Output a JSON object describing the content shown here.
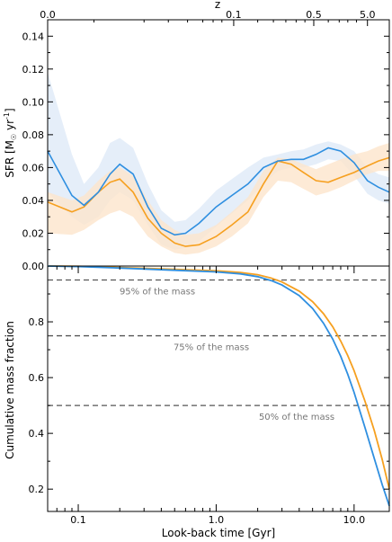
{
  "chart_data": [
    {
      "type": "line",
      "panel": "top",
      "top_axis_label": "z",
      "top_axis_ticks": [
        {
          "label": "0.0",
          "t": 0.06
        },
        {
          "label": "0.1",
          "t": 1.34
        },
        {
          "label": "0.5",
          "t": 5.1
        },
        {
          "label": "5.0",
          "t": 12.5
        }
      ],
      "ylabel_main": "SFR [M",
      "ylabel_sub": "☉",
      "ylabel_mid": " yr",
      "ylabel_sup": "-1",
      "ylabel_end": "]",
      "ylim": [
        0.0,
        0.15
      ],
      "yticks": [
        "0.00",
        "0.02",
        "0.04",
        "0.06",
        "0.08",
        "0.10",
        "0.12",
        "0.14"
      ],
      "xlim": [
        0.06,
        18.0
      ],
      "xscale": "log",
      "colors": {
        "blue": "#2f8fe0",
        "orange": "#f6a020",
        "blue_band": "#dfeaf7",
        "orange_band": "#fde5cc"
      },
      "series": [
        {
          "color_key": "blue",
          "x": [
            0.06,
            0.09,
            0.11,
            0.14,
            0.17,
            0.2,
            0.25,
            0.32,
            0.4,
            0.5,
            0.6,
            0.75,
            1.0,
            1.3,
            1.7,
            2.2,
            2.8,
            3.5,
            4.3,
            5.3,
            6.5,
            8.0,
            10.0,
            12.5,
            15.0,
            18.0
          ],
          "y": [
            0.07,
            0.043,
            0.037,
            0.045,
            0.056,
            0.062,
            0.056,
            0.036,
            0.023,
            0.019,
            0.02,
            0.026,
            0.036,
            0.043,
            0.05,
            0.06,
            0.064,
            0.065,
            0.065,
            0.068,
            0.072,
            0.07,
            0.063,
            0.052,
            0.048,
            0.045
          ],
          "lower": [
            0.045,
            0.03,
            0.025,
            0.03,
            0.04,
            0.045,
            0.04,
            0.025,
            0.013,
            0.01,
            0.011,
            0.015,
            0.024,
            0.032,
            0.04,
            0.05,
            0.058,
            0.06,
            0.06,
            0.062,
            0.065,
            0.064,
            0.055,
            0.044,
            0.04,
            0.038
          ],
          "upper": [
            0.118,
            0.068,
            0.05,
            0.06,
            0.075,
            0.078,
            0.072,
            0.05,
            0.034,
            0.027,
            0.028,
            0.035,
            0.046,
            0.053,
            0.06,
            0.066,
            0.068,
            0.07,
            0.071,
            0.074,
            0.076,
            0.074,
            0.07,
            0.06,
            0.056,
            0.054
          ]
        },
        {
          "color_key": "orange",
          "x": [
            0.06,
            0.09,
            0.11,
            0.14,
            0.17,
            0.2,
            0.25,
            0.32,
            0.4,
            0.5,
            0.6,
            0.75,
            1.0,
            1.3,
            1.7,
            2.2,
            2.8,
            3.5,
            4.3,
            5.3,
            6.5,
            8.0,
            10.0,
            12.5,
            15.0,
            18.0
          ],
          "y": [
            0.039,
            0.033,
            0.036,
            0.045,
            0.051,
            0.053,
            0.045,
            0.029,
            0.02,
            0.014,
            0.012,
            0.013,
            0.018,
            0.025,
            0.033,
            0.05,
            0.064,
            0.062,
            0.057,
            0.052,
            0.051,
            0.054,
            0.057,
            0.061,
            0.064,
            0.066
          ],
          "lower": [
            0.02,
            0.019,
            0.022,
            0.028,
            0.032,
            0.034,
            0.03,
            0.018,
            0.012,
            0.008,
            0.007,
            0.008,
            0.012,
            0.018,
            0.026,
            0.042,
            0.052,
            0.051,
            0.047,
            0.043,
            0.045,
            0.048,
            0.052,
            0.056,
            0.058,
            0.058
          ],
          "upper": [
            0.045,
            0.04,
            0.043,
            0.052,
            0.058,
            0.06,
            0.055,
            0.04,
            0.028,
            0.022,
            0.019,
            0.02,
            0.025,
            0.033,
            0.042,
            0.058,
            0.066,
            0.065,
            0.062,
            0.059,
            0.062,
            0.065,
            0.068,
            0.07,
            0.073,
            0.075
          ]
        }
      ]
    },
    {
      "type": "line",
      "panel": "bottom",
      "xlabel": "Look-back time [Gyr]",
      "ylabel": "Cumulative mass fraction",
      "xscale": "log",
      "xlim": [
        0.06,
        18.0
      ],
      "xticks": [
        {
          "label": "0.1",
          "v": 0.1
        },
        {
          "label": "1.0",
          "v": 1.0
        },
        {
          "label": "10.0",
          "v": 10.0
        }
      ],
      "ylim": [
        0.12,
        1.0
      ],
      "yticks": [
        "0.2",
        "0.4",
        "0.6",
        "0.8"
      ],
      "reference_lines": [
        {
          "y": 0.95,
          "label": "95% of the mass"
        },
        {
          "y": 0.75,
          "label": "75% of the mass"
        },
        {
          "y": 0.5,
          "label": "50% of the mass"
        }
      ],
      "series": [
        {
          "color_key": "blue",
          "x": [
            0.06,
            0.1,
            0.2,
            0.5,
            1.0,
            1.5,
            2.0,
            2.5,
            3.0,
            4.0,
            5.0,
            6.0,
            7.0,
            8.0,
            9.0,
            10.0,
            12.0,
            14.0,
            16.0,
            18.0
          ],
          "y": [
            1.0,
            0.998,
            0.993,
            0.985,
            0.979,
            0.972,
            0.962,
            0.948,
            0.932,
            0.894,
            0.848,
            0.795,
            0.738,
            0.676,
            0.612,
            0.547,
            0.42,
            0.31,
            0.215,
            0.14
          ]
        },
        {
          "color_key": "orange",
          "x": [
            0.06,
            0.1,
            0.2,
            0.5,
            1.0,
            1.5,
            2.0,
            2.5,
            3.0,
            4.0,
            5.0,
            6.0,
            7.0,
            8.0,
            9.0,
            10.0,
            12.0,
            14.0,
            16.0,
            18.0
          ],
          "y": [
            1.0,
            0.999,
            0.995,
            0.988,
            0.983,
            0.977,
            0.969,
            0.957,
            0.943,
            0.91,
            0.872,
            0.829,
            0.782,
            0.731,
            0.679,
            0.625,
            0.515,
            0.41,
            0.305,
            0.2
          ]
        }
      ]
    }
  ]
}
